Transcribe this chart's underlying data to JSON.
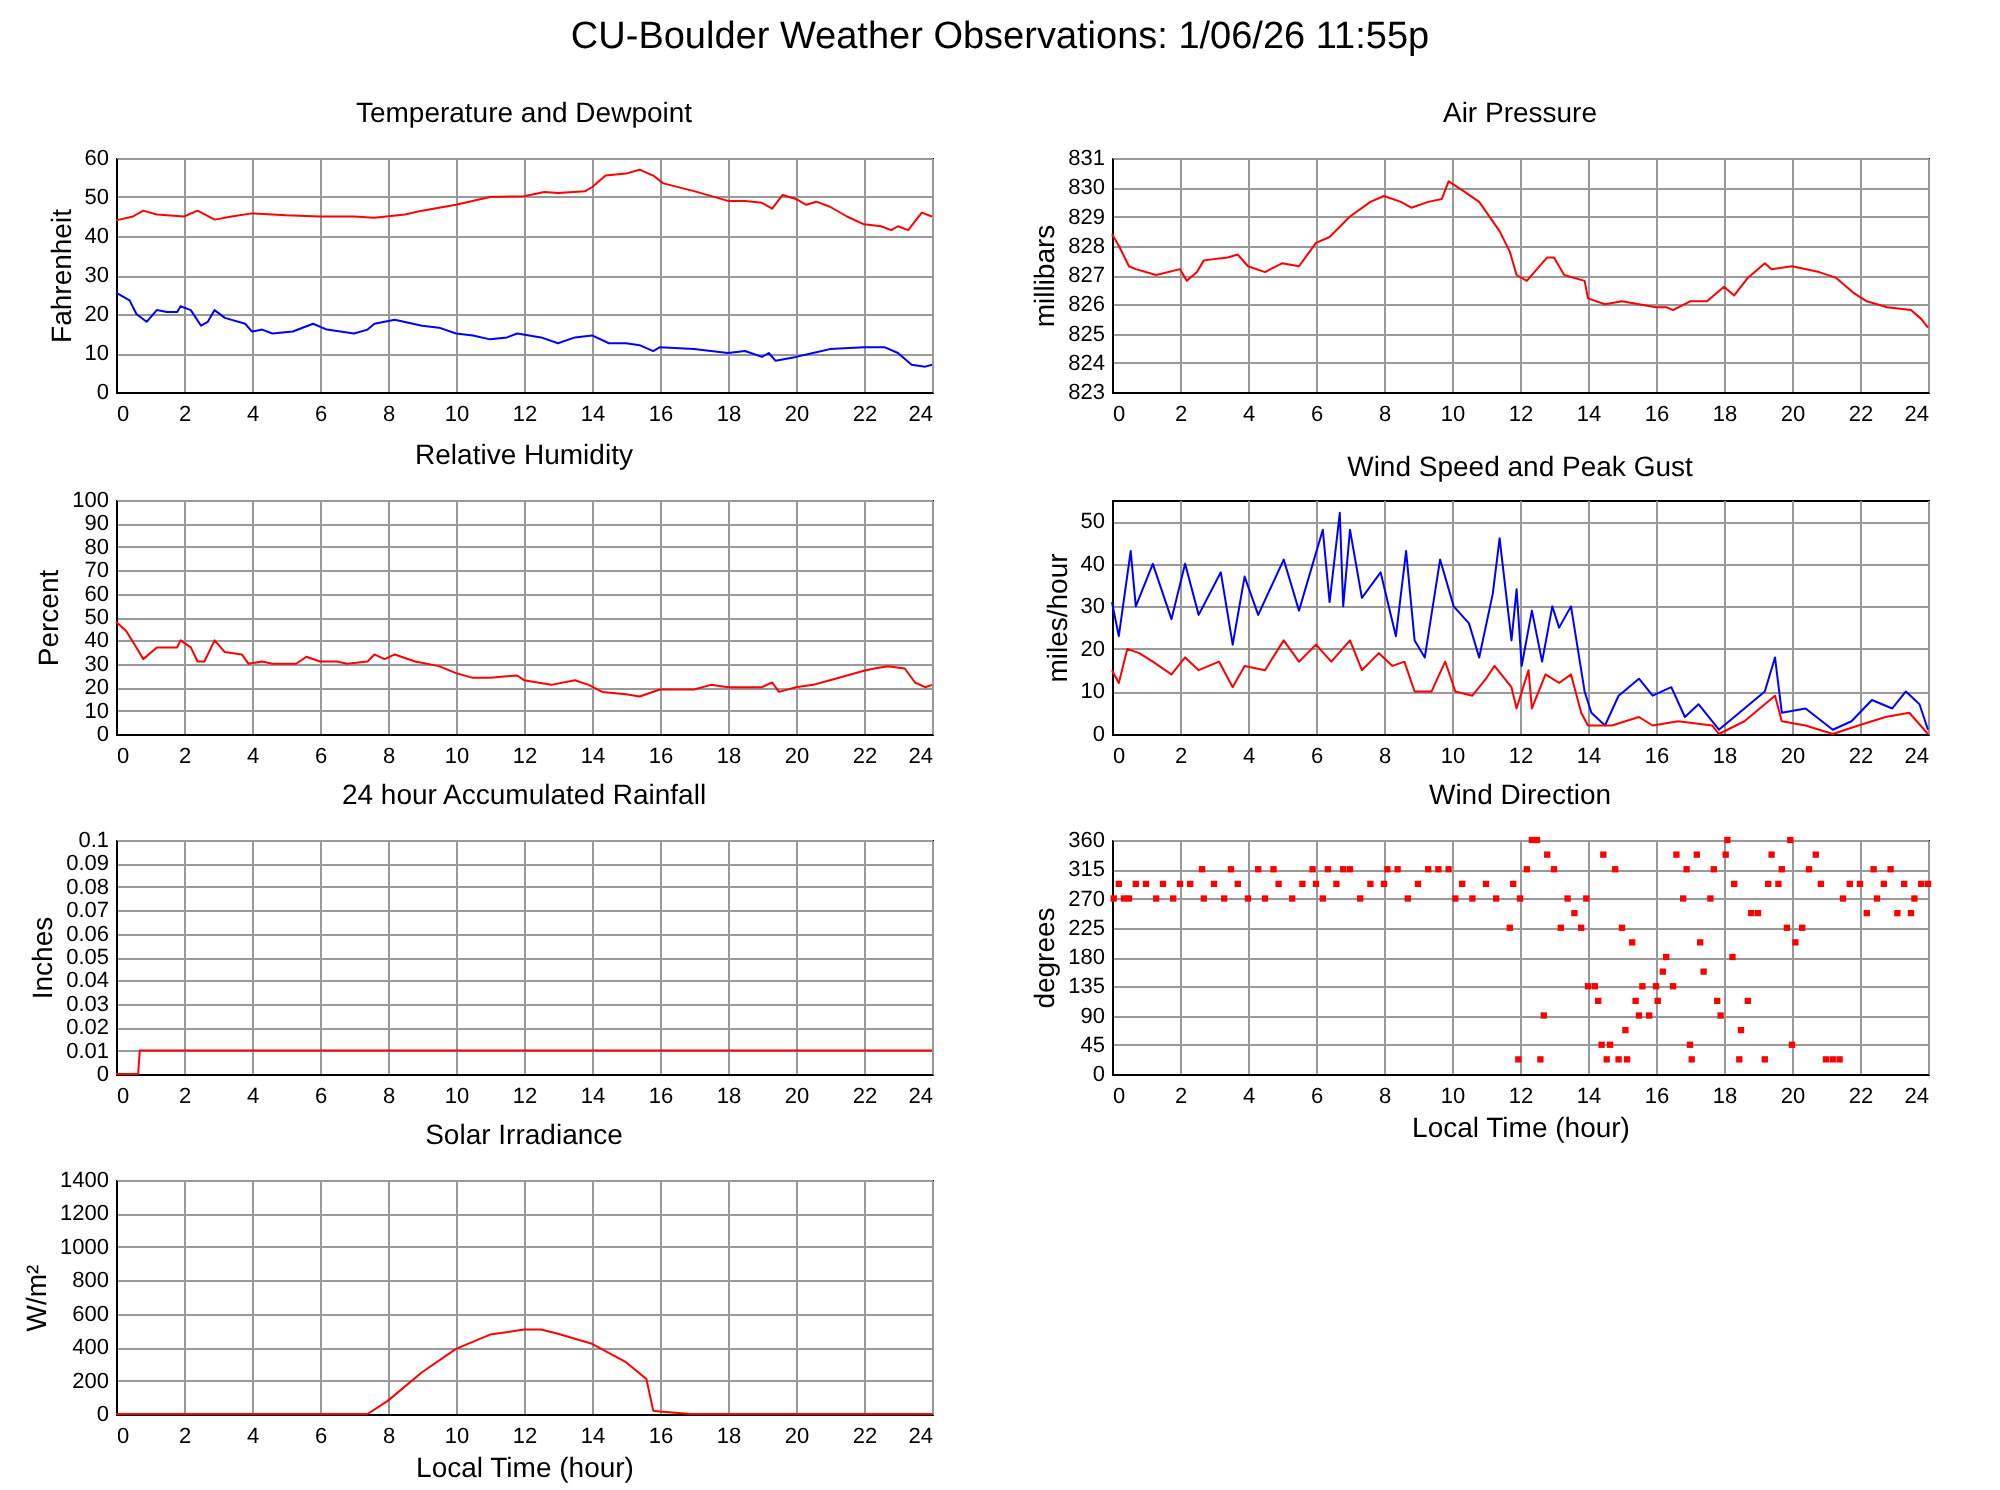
{
  "chart_data": [
    {
      "type": "other",
      "title": "CU-Boulder Weather Observations: 1/06/26 11:55p"
    },
    {
      "type": "line",
      "title": "Temperature and Dewpoint",
      "ylabel": "Fahrenheit",
      "xlim": [
        0,
        24
      ],
      "xticks": [
        0,
        2,
        4,
        6,
        8,
        10,
        12,
        14,
        16,
        18,
        20,
        22,
        24
      ],
      "ylim": [
        0,
        60
      ],
      "yticks": [
        0,
        10,
        20,
        30,
        40,
        50,
        60
      ],
      "grid": true,
      "series": [
        {
          "color": "#ff0000",
          "x": [
            0,
            0.5,
            0.8,
            1.2,
            2,
            2.4,
            2.9,
            3.4,
            4,
            5,
            6,
            7,
            7.6,
            8.5,
            9,
            10,
            11,
            12,
            12.6,
            13,
            13.8,
            14,
            14.4,
            15,
            15.4,
            15.8,
            16.1,
            17,
            18,
            18.5,
            19,
            19.3,
            19.6,
            20,
            20.3,
            20.6,
            21,
            21.5,
            22,
            22.5,
            22.8,
            23,
            23.3,
            23.7,
            24
          ],
          "values": [
            44,
            45,
            46.5,
            45.5,
            45,
            46.5,
            44.2,
            45,
            45.8,
            45.3,
            45,
            45,
            44.7,
            45.5,
            46.5,
            48,
            50,
            50.2,
            51.3,
            51,
            51.5,
            52.5,
            55.5,
            56,
            57,
            55.5,
            53.5,
            51.5,
            49,
            49,
            48.5,
            47,
            50.5,
            49.5,
            48,
            48.8,
            47.5,
            45,
            43,
            42.5,
            41.5,
            42.5,
            41.5,
            46,
            45
          ]
        },
        {
          "color": "#0000ff",
          "x": [
            0,
            0.4,
            0.6,
            0.9,
            1.2,
            1.5,
            1.8,
            1.9,
            2.2,
            2.5,
            2.7,
            2.9,
            3.2,
            3.8,
            4,
            4.3,
            4.6,
            5.2,
            5.8,
            6.2,
            7,
            7.4,
            7.6,
            8.2,
            9,
            9.5,
            10,
            10.5,
            11,
            11.5,
            11.8,
            12.5,
            13,
            13.5,
            14,
            14.5,
            15,
            15.4,
            15.8,
            16,
            17,
            18,
            18.5,
            19,
            19.2,
            19.4,
            20,
            20.5,
            21,
            22,
            22.6,
            23,
            23.4,
            23.8,
            24
          ],
          "values": [
            25.5,
            23.5,
            20,
            18,
            21,
            20.5,
            20.5,
            22,
            21,
            17,
            18,
            21,
            19,
            17.5,
            15.5,
            16,
            15,
            15.5,
            17.5,
            16,
            15,
            16,
            17.5,
            18.5,
            17,
            16.5,
            15,
            14.5,
            13.5,
            14,
            15,
            14,
            12.5,
            14,
            14.5,
            12.5,
            12.5,
            12,
            10.5,
            11.5,
            11,
            10,
            10.5,
            9,
            10,
            8,
            9,
            10,
            11,
            11.5,
            11.5,
            10,
            7,
            6.5,
            7
          ]
        }
      ]
    },
    {
      "type": "line",
      "title": "Air Pressure",
      "ylabel": "millibars",
      "xlim": [
        0,
        24
      ],
      "xticks": [
        0,
        2,
        4,
        6,
        8,
        10,
        12,
        14,
        16,
        18,
        20,
        22,
        24
      ],
      "ylim": [
        823,
        831
      ],
      "yticks": [
        823,
        824,
        825,
        826,
        827,
        828,
        829,
        830,
        831
      ],
      "grid": true,
      "series": [
        {
          "color": "#ff0000",
          "x": [
            0,
            0.2,
            0.5,
            0.7,
            1.3,
            2,
            2.2,
            2.5,
            2.7,
            3.4,
            3.7,
            4,
            4.5,
            5,
            5.5,
            6,
            6.4,
            7,
            7.6,
            8,
            8.5,
            8.8,
            9.3,
            9.7,
            9.9,
            10.3,
            10.8,
            11.4,
            11.7,
            11.9,
            12.2,
            12.5,
            12.8,
            13,
            13.3,
            13.9,
            14,
            14.5,
            15,
            15.5,
            16,
            16.3,
            16.5,
            17,
            17.5,
            18,
            18.3,
            18.7,
            19.2,
            19.4,
            20,
            20.8,
            21.3,
            21.8,
            22.2,
            22.8,
            23.5,
            23.8,
            24
          ],
          "values": [
            828.4,
            828,
            827.3,
            827.2,
            827,
            827.2,
            826.8,
            827.1,
            827.5,
            827.6,
            827.7,
            827.3,
            827.1,
            827.4,
            827.3,
            828.1,
            828.3,
            829,
            829.5,
            829.7,
            829.5,
            829.3,
            829.5,
            829.6,
            830.2,
            829.9,
            829.5,
            828.5,
            827.8,
            827,
            826.8,
            827.2,
            827.6,
            827.6,
            827,
            826.8,
            826.2,
            826,
            826.1,
            826,
            825.9,
            825.9,
            825.8,
            826.1,
            826.1,
            826.6,
            826.3,
            826.9,
            827.4,
            827.2,
            827.3,
            827.1,
            826.9,
            826.4,
            826.1,
            825.9,
            825.8,
            825.5,
            825.2
          ]
        }
      ]
    },
    {
      "type": "line",
      "title": "Relative Humidity",
      "ylabel": "Percent",
      "xlim": [
        0,
        24
      ],
      "xticks": [
        0,
        2,
        4,
        6,
        8,
        10,
        12,
        14,
        16,
        18,
        20,
        22,
        24
      ],
      "ylim": [
        0,
        100
      ],
      "yticks": [
        0,
        10,
        20,
        30,
        40,
        50,
        60,
        70,
        80,
        90,
        100
      ],
      "grid": true,
      "series": [
        {
          "color": "#ff0000",
          "x": [
            0,
            0.3,
            0.6,
            0.8,
            1.2,
            1.8,
            1.9,
            2.2,
            2.4,
            2.6,
            2.9,
            3.2,
            3.7,
            3.9,
            4.3,
            4.6,
            5.3,
            5.6,
            6,
            6.5,
            6.8,
            7.4,
            7.6,
            7.9,
            8.2,
            8.8,
            9.5,
            10,
            10.5,
            11,
            11.8,
            12,
            12.8,
            13.5,
            13.9,
            14.3,
            15,
            15.4,
            16,
            17,
            17.5,
            18,
            19,
            19.3,
            19.5,
            20,
            20.5,
            21,
            22,
            22.3,
            22.7,
            23.2,
            23.5,
            23.8,
            24
          ],
          "values": [
            48,
            44,
            37,
            32,
            37,
            37,
            40,
            37,
            31,
            31,
            40,
            35,
            34,
            30,
            31,
            30,
            30,
            33,
            31,
            31,
            30,
            31,
            34,
            32,
            34,
            31,
            29,
            26,
            24,
            24,
            25,
            23,
            21,
            23,
            21,
            18,
            17,
            16,
            19,
            19,
            21,
            20,
            20,
            22,
            18,
            20,
            21,
            23,
            27,
            28,
            29,
            28,
            22,
            20,
            21
          ]
        }
      ]
    },
    {
      "type": "line",
      "title": "Wind Speed and Peak Gust",
      "ylabel": "miles/hour",
      "xlim": [
        0,
        24
      ],
      "xticks": [
        0,
        2,
        4,
        6,
        8,
        10,
        12,
        14,
        16,
        18,
        20,
        22,
        24
      ],
      "ylim": [
        0,
        55
      ],
      "yticks": [
        0,
        10,
        20,
        30,
        40,
        50
      ],
      "grid": true,
      "series": [
        {
          "color": "#0000ff",
          "x": [
            0,
            0.2,
            0.55,
            0.7,
            1.2,
            1.75,
            2.15,
            2.55,
            3.2,
            3.55,
            3.9,
            4.3,
            5.05,
            5.5,
            6.2,
            6.4,
            6.7,
            6.8,
            7,
            7.35,
            7.9,
            8.35,
            8.65,
            8.9,
            9.2,
            9.65,
            10.05,
            10.5,
            10.8,
            11.2,
            11.4,
            11.75,
            11.9,
            12.05,
            12.35,
            12.65,
            12.95,
            13.15,
            13.5,
            13.7,
            13.9,
            14.1,
            14.5,
            14.9,
            15.5,
            15.9,
            16.45,
            16.85,
            17.25,
            17.85,
            18.6,
            19.2,
            19.5,
            19.7,
            20.4,
            21.2,
            21.75,
            22.35,
            22.95,
            23.35,
            23.75,
            24
          ],
          "values": [
            31,
            23,
            43,
            30,
            40,
            27,
            40,
            28,
            38,
            21,
            37,
            28,
            41,
            29,
            48,
            31,
            52,
            30,
            48,
            32,
            38,
            23,
            43,
            22,
            18,
            41,
            30,
            26,
            18,
            33,
            46,
            22,
            34,
            16,
            29,
            17,
            30,
            25,
            30,
            20,
            10,
            5,
            2,
            9,
            13,
            9,
            11,
            4,
            7,
            1,
            6,
            10,
            18,
            5,
            6,
            1,
            3,
            8,
            6,
            10,
            7,
            1
          ]
        },
        {
          "color": "#ff0000",
          "x": [
            0,
            0.2,
            0.45,
            0.8,
            1.2,
            1.75,
            2.15,
            2.55,
            3.15,
            3.55,
            3.9,
            4.5,
            5.05,
            5.5,
            6,
            6.45,
            7,
            7.35,
            7.85,
            8.25,
            8.6,
            8.9,
            9.4,
            9.8,
            10.1,
            10.6,
            11,
            11.25,
            11.75,
            11.9,
            12.25,
            12.35,
            12.75,
            13.15,
            13.5,
            13.8,
            14,
            14.7,
            15.5,
            15.9,
            16.65,
            17.65,
            17.85,
            18.6,
            19.5,
            19.7,
            20.4,
            21.2,
            21.95,
            22.75,
            23.45,
            24
          ],
          "values": [
            15,
            12,
            20,
            19,
            17,
            14,
            18,
            15,
            17,
            11,
            16,
            15,
            22,
            17,
            21,
            17,
            22,
            15,
            19,
            16,
            17,
            10,
            10,
            17,
            10,
            9,
            13,
            16,
            11,
            6,
            15,
            6,
            14,
            12,
            14,
            5,
            2,
            2,
            4,
            2,
            3,
            2,
            0,
            3,
            9,
            3,
            2,
            0,
            2,
            4,
            5,
            0
          ]
        }
      ]
    },
    {
      "type": "line",
      "title": "24 hour Accumulated Rainfall",
      "ylabel": "Inches",
      "xlim": [
        0,
        24
      ],
      "xticks": [
        0,
        2,
        4,
        6,
        8,
        10,
        12,
        14,
        16,
        18,
        20,
        22,
        24
      ],
      "ylim": [
        0,
        0.1
      ],
      "yticks": [
        0,
        0.01,
        0.02,
        0.03,
        0.04,
        0.05,
        0.06,
        0.07,
        0.08,
        0.09,
        0.1
      ],
      "grid": true,
      "series": [
        {
          "color": "#ff0000",
          "x": [
            0,
            0.65,
            0.7,
            24
          ],
          "values": [
            0,
            0,
            0.01,
            0.01
          ]
        }
      ]
    },
    {
      "type": "scatter",
      "title": "Wind Direction",
      "xlabel": "Local Time (hour)",
      "ylabel": "degrees",
      "xlim": [
        0,
        24
      ],
      "xticks": [
        0,
        2,
        4,
        6,
        8,
        10,
        12,
        14,
        16,
        18,
        20,
        22,
        24
      ],
      "ylim": [
        0,
        360
      ],
      "yticks": [
        0,
        45,
        90,
        135,
        180,
        225,
        270,
        315,
        360
      ],
      "grid": true,
      "marker": "square",
      "series": [
        {
          "color": "#ff0000",
          "x": [
            0.05,
            0.2,
            0.35,
            0.5,
            0.7,
            1,
            1.3,
            1.5,
            1.8,
            2,
            2.3,
            2.65,
            2.7,
            3,
            3.3,
            3.5,
            3.7,
            4,
            4.3,
            4.5,
            4.75,
            4.9,
            5.3,
            5.6,
            5.9,
            6,
            6.2,
            6.35,
            6.6,
            6.8,
            7,
            7.3,
            7.6,
            8,
            8.1,
            8.4,
            8.7,
            9,
            9.3,
            9.6,
            9.9,
            10.1,
            10.3,
            10.6,
            11,
            11.3,
            11.7,
            11.8,
            11.95,
            12,
            12.2,
            12.35,
            12.5,
            12.6,
            12.7,
            12.8,
            13,
            13.2,
            13.4,
            13.6,
            13.8,
            13.95,
            14,
            14.2,
            14.3,
            14.4,
            14.45,
            14.55,
            14.65,
            14.8,
            14.9,
            15,
            15.1,
            15.15,
            15.3,
            15.4,
            15.5,
            15.6,
            15.8,
            16,
            16.05,
            16.2,
            16.3,
            16.5,
            16.6,
            16.8,
            16.9,
            17,
            17.05,
            17.2,
            17.3,
            17.4,
            17.6,
            17.7,
            17.8,
            17.9,
            18.05,
            18.1,
            18.25,
            18.3,
            18.45,
            18.5,
            18.7,
            18.8,
            19,
            19.2,
            19.3,
            19.4,
            19.6,
            19.7,
            19.85,
            19.95,
            20,
            20.1,
            20.3,
            20.5,
            20.7,
            20.85,
            21,
            21.2,
            21.4,
            21.5,
            21.7,
            22,
            22.2,
            22.4,
            22.5,
            22.7,
            22.9,
            23.1,
            23.3,
            23.5,
            23.6,
            23.8,
            24
          ],
          "values": [
            270,
            292.5,
            270,
            270,
            292.5,
            292.5,
            270,
            292.5,
            270,
            292.5,
            292.5,
            315,
            270,
            292.5,
            270,
            315,
            292.5,
            270,
            315,
            270,
            315,
            292.5,
            270,
            292.5,
            315,
            292.5,
            270,
            315,
            292.5,
            315,
            315,
            270,
            292.5,
            292.5,
            315,
            315,
            270,
            292.5,
            315,
            315,
            315,
            270,
            292.5,
            270,
            292.5,
            270,
            225,
            292.5,
            22.5,
            270,
            315,
            360,
            360,
            22.5,
            90,
            337.5,
            315,
            225,
            270,
            247.5,
            225,
            270,
            135,
            135,
            112.5,
            45,
            337.5,
            22.5,
            45,
            315,
            22.5,
            225,
            67.5,
            22.5,
            202.5,
            112.5,
            90,
            135,
            90,
            135,
            112.5,
            157.5,
            180,
            135,
            337.5,
            270,
            315,
            45,
            22.5,
            337.5,
            202.5,
            157.5,
            270,
            315,
            112.5,
            90,
            337.5,
            360,
            180,
            292.5,
            22.5,
            67.5,
            112.5,
            247.5,
            247.5,
            22.5,
            292.5,
            337.5,
            292.5,
            315,
            225,
            360,
            45,
            202.5,
            225,
            315,
            337.5,
            292.5,
            22.5,
            22.5,
            22.5,
            270,
            292.5,
            292.5,
            247.5,
            315,
            270,
            292.5,
            315,
            247.5,
            292.5,
            247.5,
            270,
            292.5,
            292.5
          ]
        }
      ]
    },
    {
      "type": "line",
      "title": "Solar Irradiance",
      "xlabel": "Local Time (hour)",
      "ylabel": "W/m²",
      "xlim": [
        0,
        24
      ],
      "xticks": [
        0,
        2,
        4,
        6,
        8,
        10,
        12,
        14,
        16,
        18,
        20,
        22,
        24
      ],
      "ylim": [
        0,
        1400
      ],
      "yticks": [
        0,
        200,
        400,
        600,
        800,
        1000,
        1200,
        1400
      ],
      "grid": true,
      "series": [
        {
          "color": "#ff0000",
          "x": [
            0,
            7.4,
            8,
            9,
            10,
            11,
            12,
            12.5,
            13,
            14,
            15,
            15.6,
            15.8,
            16,
            16.9,
            24
          ],
          "values": [
            0,
            0,
            80,
            250,
            390,
            475,
            505,
            505,
            480,
            420,
            310,
            210,
            20,
            15,
            0,
            0
          ]
        }
      ]
    }
  ]
}
